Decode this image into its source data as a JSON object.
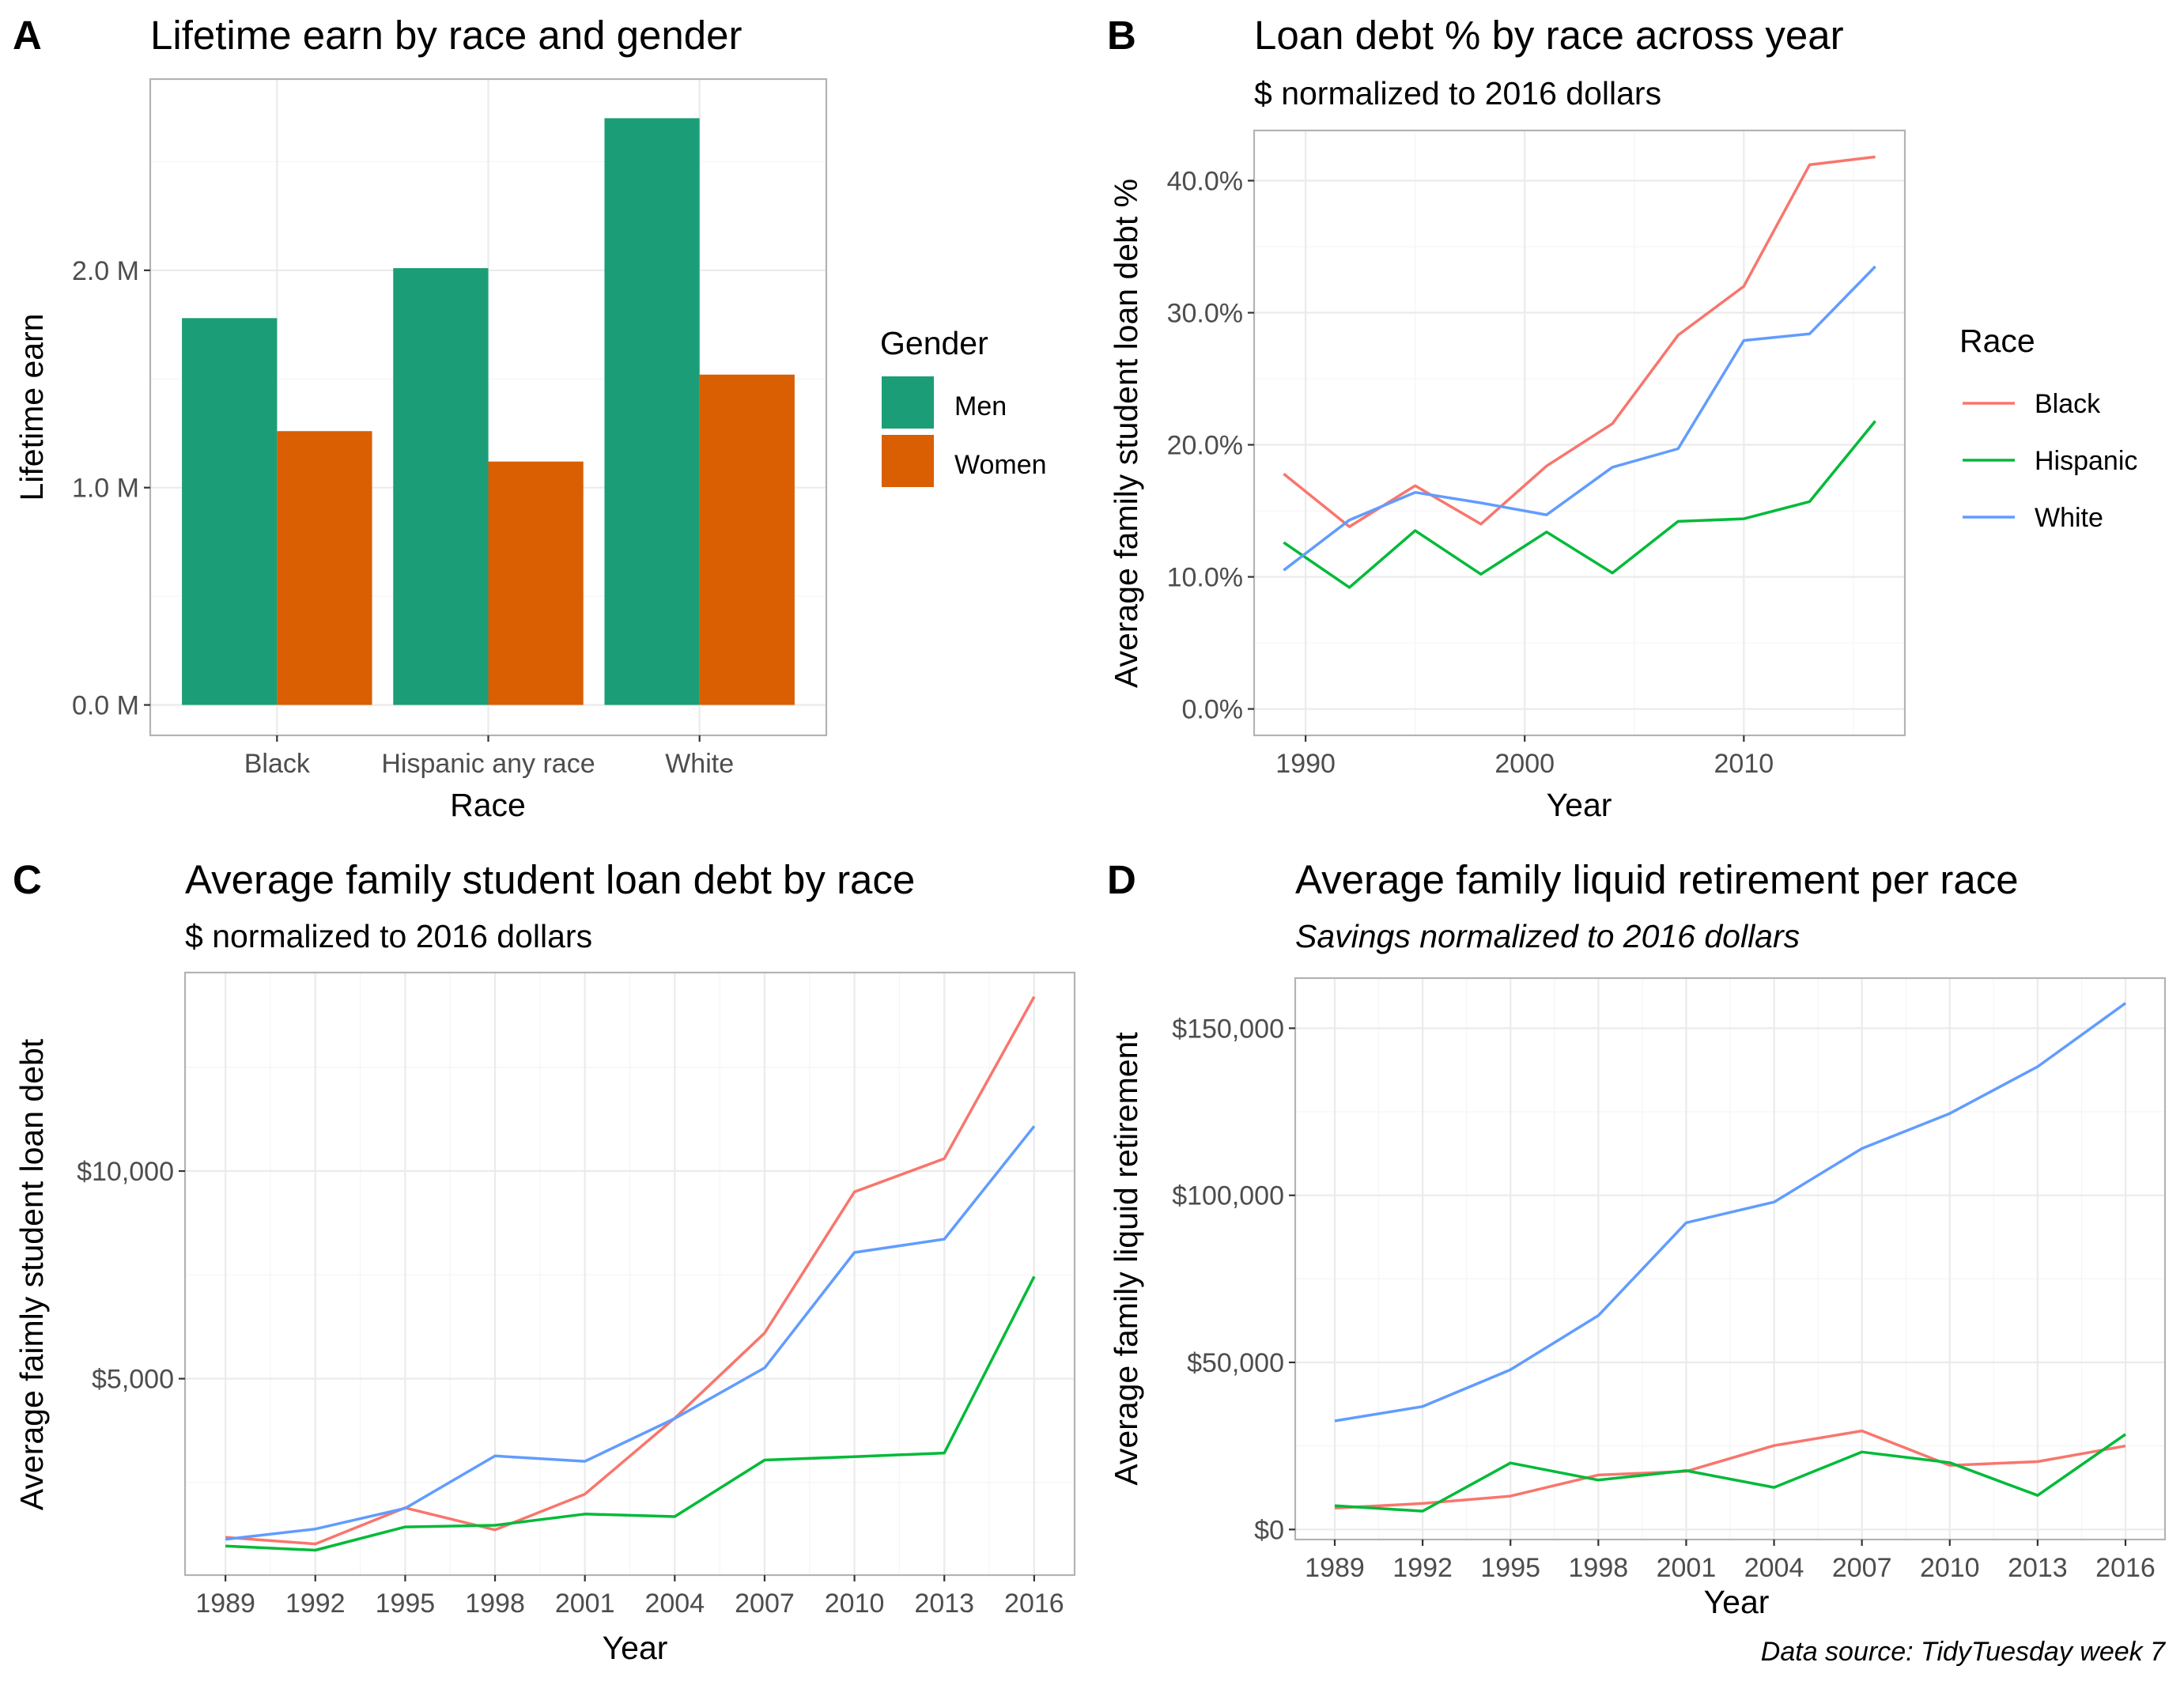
{
  "caption": "Data source: TidyTuesday week 7",
  "colors": {
    "men": "#1B9E77",
    "women": "#D95F02",
    "black": "#F8766D",
    "hispanic": "#00BA38",
    "white": "#619CFF"
  },
  "chart_data": [
    {
      "tag": "A",
      "type": "bar",
      "title": "Lifetime earn by race and gender",
      "subtitle": "",
      "xlabel": "Race",
      "ylabel": "Lifetime earn",
      "categories": [
        "Black",
        "Hispanic any race",
        "White"
      ],
      "ylim": [
        -140000,
        2880000
      ],
      "yticks": [
        0,
        1000000,
        2000000
      ],
      "ytick_labels": [
        "0.0 M",
        "1.0 M",
        "2.0 M"
      ],
      "legend": {
        "title": "Gender",
        "position": "right"
      },
      "series": [
        {
          "name": "Men",
          "color": "#1B9E77",
          "values": [
            1780000,
            2010000,
            2700000
          ]
        },
        {
          "name": "Women",
          "color": "#D95F02",
          "values": [
            1260000,
            1120000,
            1520000
          ]
        }
      ]
    },
    {
      "tag": "B",
      "type": "line",
      "title": "Loan debt % by race across year",
      "subtitle": "$ normalized to 2016 dollars",
      "xlabel": "Year",
      "ylabel": "Average family student loan debt %",
      "x": [
        1989,
        1992,
        1995,
        1998,
        2001,
        2004,
        2007,
        2010,
        2013,
        2016
      ],
      "xlim": [
        1987.65,
        2017.35
      ],
      "xticks": [
        1990,
        2000,
        2010
      ],
      "xtick_labels": [
        "1990",
        "2000",
        "2010"
      ],
      "ylim": [
        -2.0,
        43.8
      ],
      "yticks": [
        0,
        10,
        20,
        30,
        40
      ],
      "ytick_labels": [
        "0.0%",
        "10.0%",
        "20.0%",
        "30.0%",
        "40.0%"
      ],
      "legend": {
        "title": "Race",
        "position": "right"
      },
      "series": [
        {
          "name": "Black",
          "color": "#F8766D",
          "values": [
            17.8,
            13.8,
            16.9,
            14.0,
            18.4,
            21.6,
            28.3,
            32.0,
            41.2,
            41.8
          ]
        },
        {
          "name": "Hispanic",
          "color": "#00BA38",
          "values": [
            12.6,
            9.2,
            13.5,
            10.2,
            13.4,
            10.3,
            14.2,
            14.4,
            15.7,
            21.8
          ]
        },
        {
          "name": "White",
          "color": "#619CFF",
          "values": [
            10.5,
            14.3,
            16.4,
            15.6,
            14.7,
            18.3,
            19.7,
            27.9,
            28.4,
            33.5
          ]
        }
      ]
    },
    {
      "tag": "C",
      "type": "line",
      "title": "Average family student loan debt by race",
      "subtitle": "$ normalized to 2016 dollars",
      "xlabel": "Year",
      "ylabel": "Average faimly student loan debt",
      "x": [
        1989,
        1992,
        1995,
        1998,
        2001,
        2004,
        2007,
        2010,
        2013,
        2016
      ],
      "xlim": [
        1987.65,
        2017.35
      ],
      "xticks": [
        1989,
        1992,
        1995,
        1998,
        2001,
        2004,
        2007,
        2010,
        2013,
        2016
      ],
      "xtick_labels": [
        "1989",
        "1992",
        "1995",
        "1998",
        "2001",
        "2004",
        "2007",
        "2010",
        "2013",
        "2016"
      ],
      "ylim": [
        270,
        14780
      ],
      "yticks": [
        5000,
        10000
      ],
      "ytick_labels": [
        "$5,000",
        "$10,000"
      ],
      "series": [
        {
          "name": "Black",
          "color": "#F8766D",
          "values": [
            1180,
            1020,
            1890,
            1360,
            2220,
            4050,
            6100,
            9500,
            10300,
            14200
          ]
        },
        {
          "name": "Hispanic",
          "color": "#00BA38",
          "values": [
            970,
            870,
            1430,
            1470,
            1740,
            1680,
            3040,
            3120,
            3210,
            7460
          ]
        },
        {
          "name": "White",
          "color": "#619CFF",
          "values": [
            1130,
            1380,
            1880,
            3140,
            3010,
            4040,
            5260,
            8040,
            8360,
            11080
          ]
        }
      ]
    },
    {
      "tag": "D",
      "type": "line",
      "title": "Average family liquid retirement per race",
      "subtitle": "Savings normalized to 2016 dollars",
      "xlabel": "Year",
      "ylabel": "Average family liquid retirement",
      "x": [
        1989,
        1992,
        1995,
        1998,
        2001,
        2004,
        2007,
        2010,
        2013,
        2016
      ],
      "xlim": [
        1987.65,
        2017.35
      ],
      "xticks": [
        1989,
        1992,
        1995,
        1998,
        2001,
        2004,
        2007,
        2010,
        2013,
        2016
      ],
      "xtick_labels": [
        "1989",
        "1992",
        "1995",
        "1998",
        "2001",
        "2004",
        "2007",
        "2010",
        "2013",
        "2016"
      ],
      "ylim": [
        -3000,
        165000
      ],
      "yticks": [
        0,
        50000,
        100000,
        150000
      ],
      "ytick_labels": [
        "$0",
        "$50,000",
        "$100,000",
        "$150,000"
      ],
      "series": [
        {
          "name": "Black",
          "color": "#F8766D",
          "values": [
            6400,
            7800,
            10000,
            16300,
            17400,
            25100,
            29500,
            19200,
            20300,
            25000
          ]
        },
        {
          "name": "Hispanic",
          "color": "#00BA38",
          "values": [
            7100,
            5500,
            19900,
            14800,
            17600,
            12600,
            23200,
            20000,
            10200,
            28500
          ]
        },
        {
          "name": "White",
          "color": "#619CFF",
          "values": [
            32500,
            36800,
            47800,
            64000,
            91800,
            98000,
            114000,
            124500,
            138500,
            157500
          ]
        }
      ]
    }
  ]
}
